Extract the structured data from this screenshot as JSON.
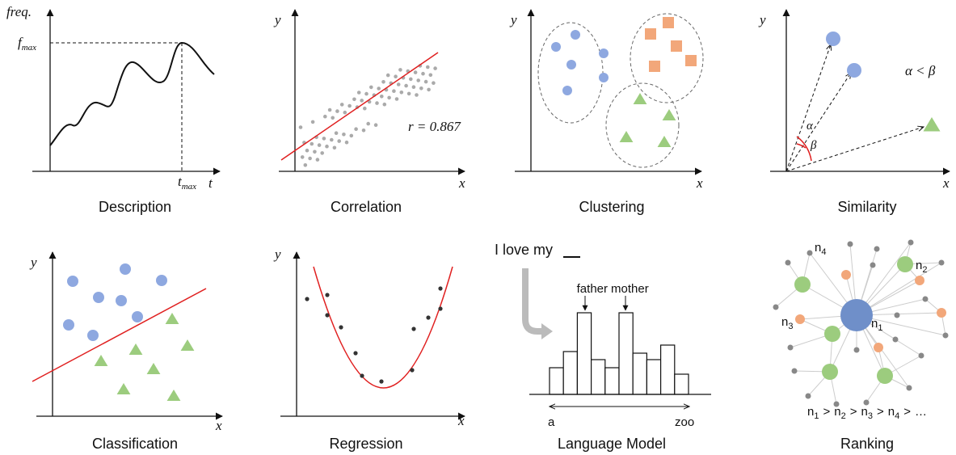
{
  "panels": [
    {
      "caption": "Description",
      "y_label": "freq.",
      "peak_label": {
        "base": "f",
        "sub": "max"
      },
      "x_label": "t",
      "peak_time_label": {
        "base": "t",
        "sub": "max"
      }
    },
    {
      "caption": "Correlation",
      "x_label": "x",
      "y_label": "y",
      "annotation": "r = 0.867"
    },
    {
      "caption": "Clustering",
      "x_label": "x",
      "y_label": "y"
    },
    {
      "caption": "Similarity",
      "x_label": "x",
      "y_label": "y",
      "angle_labels": [
        "α",
        "β"
      ],
      "annotation": "α < β"
    },
    {
      "caption": "Classification",
      "x_label": "x",
      "y_label": "y"
    },
    {
      "caption": "Regression",
      "x_label": "x",
      "y_label": "y"
    },
    {
      "caption": "Language Model",
      "prompt": "I love my",
      "peaks": [
        "father",
        "mother"
      ],
      "range": [
        "a",
        "zoo"
      ]
    },
    {
      "caption": "Ranking",
      "node_base": "n",
      "node_ids": [
        "1",
        "2",
        "3",
        "4"
      ],
      "separator": ">",
      "ellipsis": "…"
    }
  ]
}
